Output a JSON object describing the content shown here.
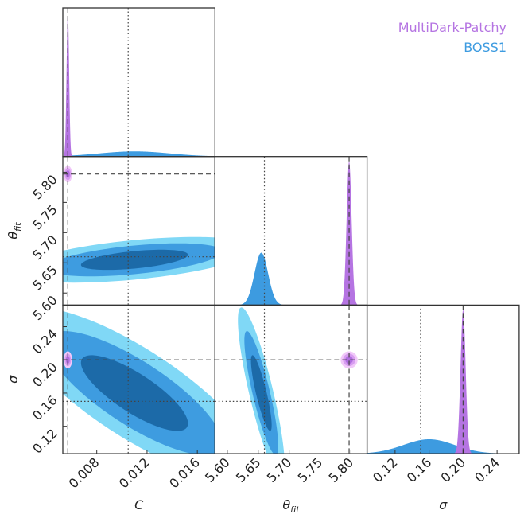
{
  "chart_data": {
    "type": "corner",
    "legend": "upper right",
    "parameters": [
      {
        "label": "C",
        "lim": [
          0.0053,
          0.0174
        ],
        "ticks": [
          0.008,
          0.012,
          0.016
        ]
      },
      {
        "label": "θ",
        "label_sub": "fit",
        "lim": [
          5.58,
          5.826
        ],
        "ticks": [
          {
            "value": 5.6,
            "label": "5.60"
          },
          5.65,
          {
            "value": 5.7,
            "label": "5.70"
          },
          5.75,
          {
            "value": 5.8,
            "label": "5.80"
          }
        ]
      },
      {
        "label": "σ",
        "lim": [
          0.087,
          0.266
        ],
        "ticks": [
          0.12,
          0.16,
          {
            "value": 0.2,
            "label": "0.20"
          },
          0.24
        ]
      }
    ],
    "series": [
      {
        "name": "MultiDark-Patchy",
        "color": "#b574e2",
        "contour_colors": [
          "#b06ddf",
          "#d79cf0",
          "#f1c8f9"
        ],
        "mean": [
          0.0057,
          5.797,
          0.2
        ],
        "std": [
          0.0001,
          0.004,
          0.003
        ],
        "corr": [
          [
            1,
            0,
            0
          ],
          [
            0,
            1,
            0
          ],
          [
            0,
            0,
            1
          ]
        ],
        "truth": [
          0.0057,
          5.797,
          0.2
        ],
        "truth_style": "dashed"
      },
      {
        "name": "BOSS1",
        "color": "#3d9be0",
        "contour_colors": [
          "#1c6aa8",
          "#3e9ce0",
          "#80d8f6"
        ],
        "mean": [
          0.011,
          5.655,
          0.16
        ],
        "std": [
          0.0028,
          0.011,
          0.03
        ],
        "corr": [
          [
            1,
            0.5,
            -0.8
          ],
          [
            0.5,
            1,
            -0.85
          ],
          [
            -0.8,
            -0.85,
            1
          ]
        ],
        "truth": [
          0.0105,
          5.66,
          0.15
        ],
        "truth_style": "dotted"
      }
    ]
  }
}
